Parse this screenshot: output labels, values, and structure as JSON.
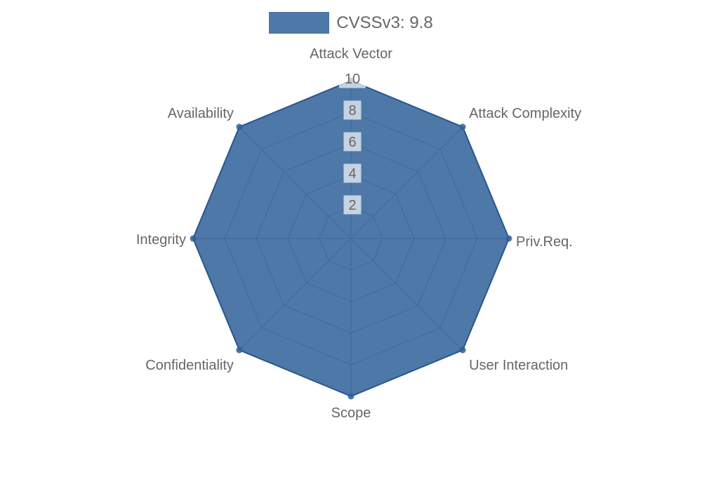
{
  "chart_data": {
    "type": "radar",
    "title": "",
    "categories": [
      "Attack Vector",
      "Attack Complexity",
      "Priv.Req.",
      "User Interaction",
      "Scope",
      "Confidentiality",
      "Integrity",
      "Availability"
    ],
    "series": [
      {
        "name": "CVSSv3: 9.8",
        "values": [
          10,
          10,
          10,
          10,
          10,
          10,
          10,
          10
        ]
      }
    ],
    "ticks": [
      2,
      4,
      6,
      8,
      10
    ],
    "rlim": [
      0,
      10
    ],
    "grid": "on",
    "grid_shape": "polygon",
    "legend_position": "top",
    "colors": {
      "fill": "rgba(46,96,153,0.85)",
      "stroke": "rgba(38,84,138,0.95)",
      "grid": "#999999",
      "point_label": "#666666",
      "tick_label": "#666666",
      "tick_backdrop": "rgba(255,255,255,0.68)",
      "legend_text": "#666666"
    }
  }
}
